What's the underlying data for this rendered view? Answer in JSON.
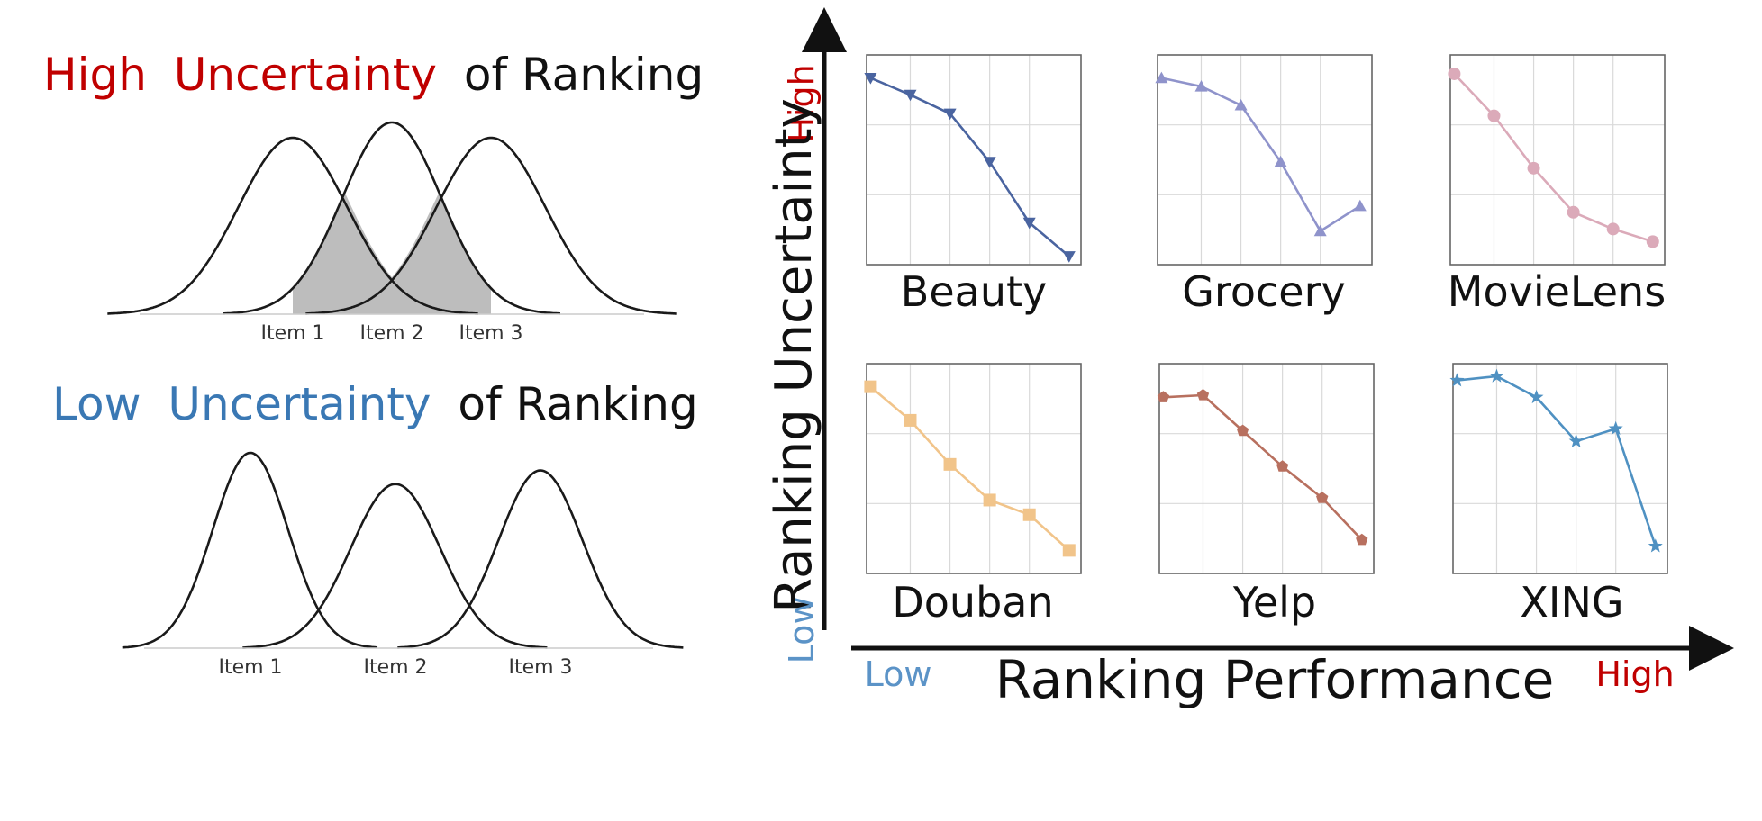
{
  "colors": {
    "high": "#c00000",
    "low": "#3a78b4",
    "text": "#111111",
    "fill": "#bdbdbd",
    "frame": "#666666",
    "grid": "#d9d9d9"
  },
  "left": {
    "high": {
      "title_high": "High",
      "title_uncertainty": "Uncertainty",
      "title_rest": "of Ranking",
      "items": [
        "Item 1",
        "Item 2",
        "Item 3"
      ],
      "distributions": [
        {
          "mu": 1.0,
          "sigma": 0.55
        },
        {
          "mu": 2.0,
          "sigma": 0.5
        },
        {
          "mu": 3.0,
          "sigma": 0.55
        }
      ]
    },
    "low": {
      "title_low": "Low",
      "title_uncertainty": "Uncertainty",
      "title_rest": "of Ranking",
      "items": [
        "Item 1",
        "Item 2",
        "Item 3"
      ],
      "distributions": [
        {
          "mu": 1.0,
          "sigma": 0.26
        },
        {
          "mu": 2.0,
          "sigma": 0.31
        },
        {
          "mu": 3.0,
          "sigma": 0.29
        }
      ]
    }
  },
  "axes": {
    "y_label": "Ranking Uncertainty",
    "y_high": "High",
    "y_low": "Low",
    "x_label": "Ranking Performance",
    "x_low": "Low",
    "x_high": "High"
  },
  "chart_data": [
    {
      "type": "line",
      "title": "Beauty",
      "marker": "triangle-down",
      "color": "#4a64a0",
      "x": [
        0,
        1,
        2,
        3,
        4,
        5
      ],
      "y": [
        0.89,
        0.81,
        0.72,
        0.49,
        0.2,
        0.04
      ]
    },
    {
      "type": "line",
      "title": "Grocery",
      "marker": "triangle-up",
      "color": "#8f93cb",
      "x": [
        0,
        1,
        2,
        3,
        4,
        5
      ],
      "y": [
        0.89,
        0.85,
        0.76,
        0.49,
        0.16,
        0.28
      ]
    },
    {
      "type": "line",
      "title": "MovieLens",
      "marker": "circle",
      "color": "#dbaab9",
      "x": [
        0,
        1,
        2,
        3,
        4,
        5
      ],
      "y": [
        0.91,
        0.71,
        0.46,
        0.25,
        0.17,
        0.11
      ]
    },
    {
      "type": "line",
      "title": "Douban",
      "marker": "square",
      "color": "#f1c48a",
      "x": [
        0,
        1,
        2,
        3,
        4,
        5
      ],
      "y": [
        0.89,
        0.73,
        0.52,
        0.35,
        0.28,
        0.11
      ]
    },
    {
      "type": "line",
      "title": "Yelp",
      "marker": "pentagon",
      "color": "#b8705f",
      "x": [
        0,
        1,
        2,
        3,
        4,
        5
      ],
      "y": [
        0.84,
        0.85,
        0.68,
        0.51,
        0.36,
        0.16
      ]
    },
    {
      "type": "line",
      "title": "XING",
      "marker": "star",
      "color": "#4f91c2",
      "x": [
        0,
        1,
        2,
        3,
        4,
        5
      ],
      "y": [
        0.92,
        0.94,
        0.84,
        0.63,
        0.69,
        0.13
      ]
    }
  ]
}
